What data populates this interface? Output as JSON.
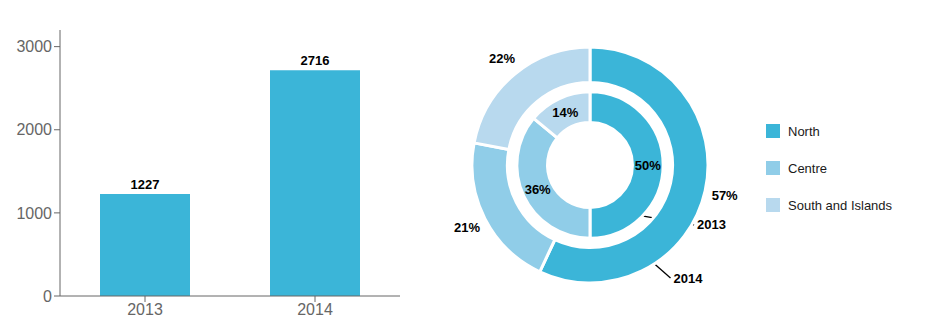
{
  "chart_data": [
    {
      "type": "bar",
      "categories": [
        "2013",
        "2014"
      ],
      "values": [
        1227,
        2716
      ],
      "color": "#3BB5D8",
      "ylim": [
        0,
        3200
      ],
      "yticks": [
        0,
        1000,
        2000,
        3000
      ],
      "grid": false,
      "data_labels": true
    },
    {
      "type": "pie",
      "categories": [
        "North",
        "Centre",
        "South and Islands"
      ],
      "colors": [
        "#3BB5D8",
        "#90CDE8",
        "#B8D9EE"
      ],
      "series": [
        {
          "name": "2013",
          "values": [
            50,
            36,
            14
          ],
          "value_labels": [
            "50%",
            "36%",
            "14%"
          ]
        },
        {
          "name": "2014",
          "values": [
            57,
            21,
            22
          ],
          "value_labels": [
            "57%",
            "21%",
            "22%"
          ]
        }
      ],
      "data_labels": true,
      "legend": "right"
    }
  ]
}
